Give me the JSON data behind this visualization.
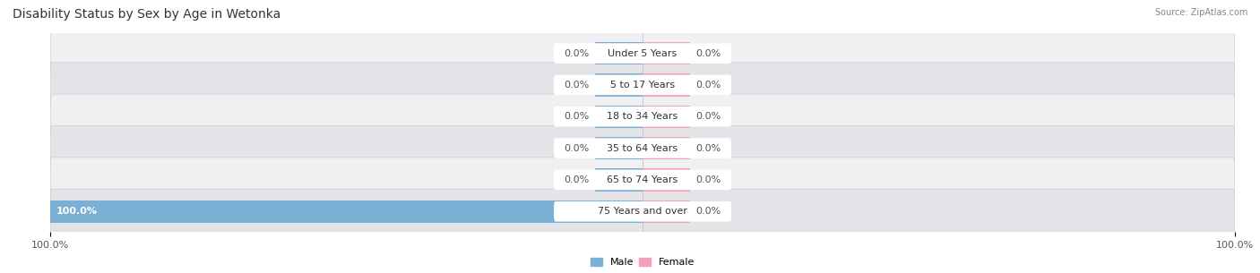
{
  "title": "Disability Status by Sex by Age in Wetonka",
  "source": "Source: ZipAtlas.com",
  "categories": [
    "Under 5 Years",
    "5 to 17 Years",
    "18 to 34 Years",
    "35 to 64 Years",
    "65 to 74 Years",
    "75 Years and over"
  ],
  "male_values": [
    0.0,
    0.0,
    0.0,
    0.0,
    0.0,
    100.0
  ],
  "female_values": [
    0.0,
    0.0,
    0.0,
    0.0,
    0.0,
    0.0
  ],
  "male_color": "#7bafd4",
  "female_color": "#f4a0b5",
  "row_bg_color_light": "#f0f0f2",
  "row_bg_color_dark": "#e4e4e8",
  "male_label": "Male",
  "female_label": "Female",
  "stub_size": 8.0,
  "xlim_left": -100,
  "xlim_right": 100,
  "title_fontsize": 10,
  "label_fontsize": 8,
  "tick_fontsize": 8,
  "value_fontsize": 8
}
